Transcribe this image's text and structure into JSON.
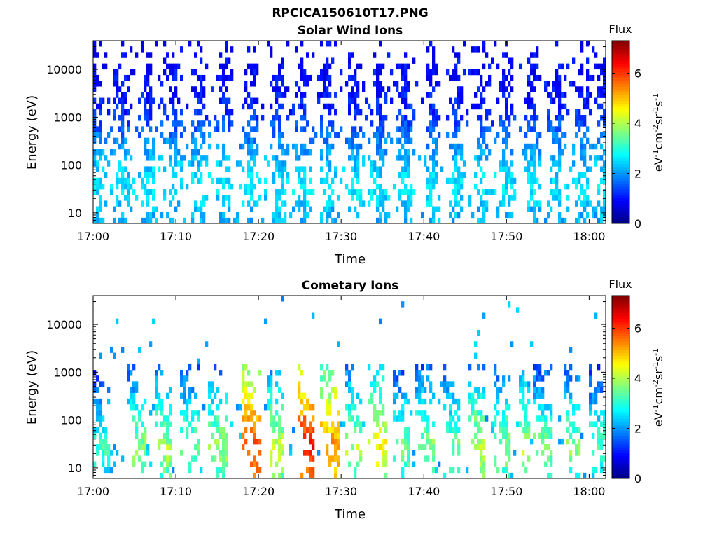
{
  "figure_title": "RPCICA150610T17.PNG",
  "chart_data": [
    {
      "type": "heatmap",
      "title": "Solar Wind Ions",
      "xlabel": "Time",
      "ylabel": "Energy (eV)",
      "x_ticks": [
        "17:00",
        "17:10",
        "17:20",
        "17:30",
        "17:40",
        "17:50",
        "18:00"
      ],
      "y_ticks": [
        "10",
        "100",
        "1000",
        "10000"
      ],
      "y_scale": "log",
      "xlim": [
        "17:00",
        "18:02"
      ],
      "ylim": [
        6,
        40000
      ],
      "colorbar": {
        "title": "Flux",
        "label": "eV-1cm-2sr-1s-1",
        "ticks": [
          "0",
          "2",
          "4",
          "6"
        ],
        "range": [
          0,
          7.3
        ],
        "colormap": "jet"
      },
      "pattern": {
        "description_free": true,
        "bursts_minutes": [
          0.5,
          3.5,
          6.7,
          9.8,
          12.8,
          15.9,
          19.2,
          22.5,
          25.4,
          28.4,
          31.6,
          34.6,
          37.8,
          41.0,
          43.9,
          47.0,
          50.0,
          53.1,
          56.2,
          59.4,
          61.7
        ],
        "energy_flux_profile": [
          [
            10,
            2.2
          ],
          [
            30,
            2.6
          ],
          [
            100,
            2.3
          ],
          [
            300,
            1.9
          ],
          [
            1000,
            1.3
          ],
          [
            3000,
            1.0
          ],
          [
            10000,
            0.9
          ],
          [
            30000,
            0.8
          ]
        ]
      }
    },
    {
      "type": "heatmap",
      "title": "Cometary Ions",
      "xlabel": "Time",
      "ylabel": "Energy (eV)",
      "x_ticks": [
        "17:00",
        "17:10",
        "17:20",
        "17:30",
        "17:40",
        "17:50",
        "18:00"
      ],
      "y_ticks": [
        "10",
        "100",
        "1000",
        "10000"
      ],
      "y_scale": "log",
      "xlim": [
        "17:00",
        "18:02"
      ],
      "ylim": [
        6,
        40000
      ],
      "colorbar": {
        "title": "Flux",
        "label": "eV-1cm-2sr-1s-1",
        "ticks": [
          "0",
          "2",
          "4",
          "6"
        ],
        "range": [
          0,
          7.3
        ],
        "colormap": "jet"
      },
      "pattern": {
        "bursts_minutes": [
          0.4,
          4.8,
          8.0,
          11.3,
          14.5,
          18.8,
          21.6,
          25.3,
          28.3,
          31.3,
          34.0,
          36.9,
          39.8,
          43.0,
          46.0,
          49.2,
          52.1,
          53.9,
          57.7,
          60.5
        ],
        "peak_flux": [
          3.2,
          3.8,
          4.0,
          3.7,
          3.9,
          6.0,
          4.2,
          6.3,
          5.5,
          4.0,
          4.6,
          3.6,
          3.8,
          3.6,
          4.2,
          3.8,
          4.1,
          3.7,
          3.8,
          3.4
        ],
        "peak_energy_ev": 25,
        "top_energy_ev": 900
      }
    }
  ]
}
